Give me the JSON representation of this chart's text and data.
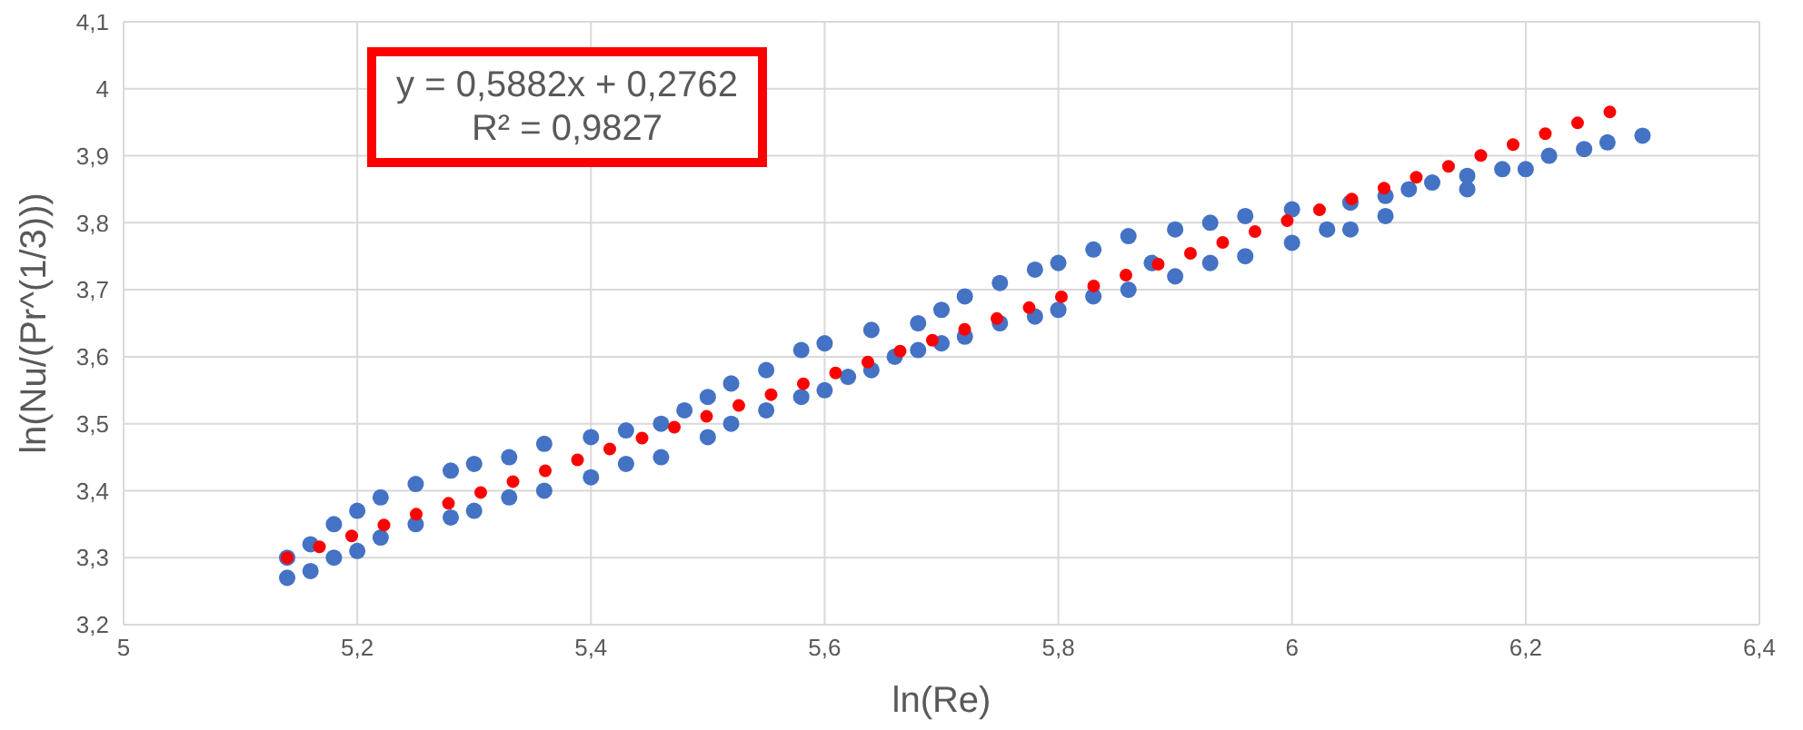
{
  "chart_data": {
    "type": "scatter",
    "xlabel": "ln(Re)",
    "ylabel": "ln(Nu/(Pr^(1/3)))",
    "annotations": [
      "y = 0,5882x + 0,2762",
      "R² = 0,9827"
    ],
    "xlim": [
      5,
      6.4
    ],
    "xticks": [
      5,
      {
        "value": 5.2,
        "label": "5,2"
      },
      {
        "value": 5.4,
        "label": "5,4"
      },
      {
        "value": 5.6,
        "label": "5,6"
      },
      {
        "value": 5.8,
        "label": "5,8"
      },
      6,
      {
        "value": 6.2,
        "label": "6,2"
      },
      {
        "value": 6.4,
        "label": "6,4"
      }
    ],
    "ylim": [
      3.2,
      4.1
    ],
    "yticks": [
      {
        "value": 3.2,
        "label": "3,2"
      },
      {
        "value": 3.3,
        "label": "3,3"
      },
      {
        "value": 3.4,
        "label": "3,4"
      },
      {
        "value": 3.5,
        "label": "3,5"
      },
      {
        "value": 3.6,
        "label": "3,6"
      },
      {
        "value": 3.7,
        "label": "3,7"
      },
      {
        "value": 3.8,
        "label": "3,8"
      },
      {
        "value": 3.9,
        "label": "3,9"
      },
      {
        "value": 4,
        "label": "4"
      },
      {
        "value": 4.1,
        "label": "4,1"
      }
    ],
    "grid": true,
    "legend": false,
    "series": [
      {
        "color": "#4472c4",
        "marker": "circle",
        "x": [
          5.14,
          5.14,
          5.16,
          5.16,
          5.18,
          5.18,
          5.2,
          5.2,
          5.22,
          5.22,
          5.25,
          5.25,
          5.28,
          5.28,
          5.3,
          5.3,
          5.33,
          5.33,
          5.36,
          5.36,
          5.4,
          5.4,
          5.43,
          5.43,
          5.46,
          5.46,
          5.48,
          5.5,
          5.5,
          5.52,
          5.52,
          5.55,
          5.55,
          5.58,
          5.58,
          5.6,
          5.6,
          5.62,
          5.64,
          5.64,
          5.66,
          5.68,
          5.68,
          5.7,
          5.7,
          5.72,
          5.72,
          5.75,
          5.75,
          5.78,
          5.78,
          5.8,
          5.8,
          5.83,
          5.83,
          5.86,
          5.86,
          5.88,
          5.9,
          5.9,
          5.93,
          5.93,
          5.96,
          5.96,
          6,
          6,
          6.03,
          6.05,
          6.05,
          6.08,
          6.08,
          6.1,
          6.12,
          6.15,
          6.15,
          6.18,
          6.2,
          6.22,
          6.25,
          6.27,
          6.3
        ],
        "values": [
          3.3,
          3.27,
          3.32,
          3.28,
          3.35,
          3.3,
          3.37,
          3.31,
          3.39,
          3.33,
          3.41,
          3.35,
          3.43,
          3.36,
          3.44,
          3.37,
          3.45,
          3.39,
          3.47,
          3.4,
          3.48,
          3.42,
          3.49,
          3.44,
          3.5,
          3.45,
          3.52,
          3.54,
          3.48,
          3.56,
          3.5,
          3.58,
          3.52,
          3.61,
          3.54,
          3.62,
          3.55,
          3.57,
          3.64,
          3.58,
          3.6,
          3.65,
          3.61,
          3.67,
          3.62,
          3.69,
          3.63,
          3.71,
          3.65,
          3.73,
          3.66,
          3.74,
          3.67,
          3.76,
          3.69,
          3.78,
          3.7,
          3.74,
          3.79,
          3.72,
          3.8,
          3.74,
          3.81,
          3.75,
          3.82,
          3.77,
          3.79,
          3.83,
          3.79,
          3.84,
          3.81,
          3.85,
          3.86,
          3.87,
          3.85,
          3.88,
          3.88,
          3.9,
          3.91,
          3.92,
          3.93
        ]
      },
      {
        "type": "line",
        "color": "#ff0000",
        "line_style": "dotted",
        "x": [
          5.14,
          6.28
        ],
        "values": [
          3.3,
          3.97
        ]
      }
    ]
  }
}
